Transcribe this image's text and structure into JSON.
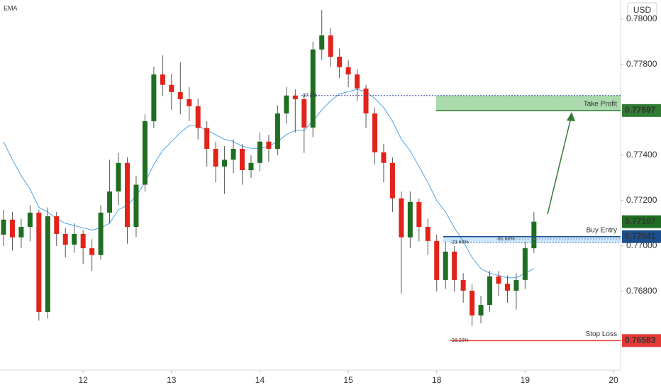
{
  "chart_data": {
    "type": "candlestick",
    "indicator": "EMA",
    "currency": "USD",
    "xlim": [
      -0.4,
      69.8
    ],
    "xticks": [
      {
        "value": 9,
        "label": "12"
      },
      {
        "value": 19,
        "label": "13"
      },
      {
        "value": 29,
        "label": "14"
      },
      {
        "value": 39,
        "label": "15"
      },
      {
        "value": 49,
        "label": "18"
      },
      {
        "value": 59,
        "label": "19"
      },
      {
        "value": 69,
        "label": "20"
      }
    ],
    "ylim": [
      0.76459,
      0.78084
    ],
    "yticks": [
      {
        "value": 0.78,
        "label": "0.78000"
      },
      {
        "value": 0.778,
        "label": "0.77800"
      },
      {
        "value": 0.774,
        "label": "0.77400"
      },
      {
        "value": 0.772,
        "label": "0.77200"
      },
      {
        "value": 0.77,
        "label": "0.77000"
      },
      {
        "value": 0.768,
        "label": "0.76800"
      }
    ],
    "up_color": "#1f6e22",
    "down_color": "#e2231a",
    "open": [
      0.7705,
      0.77116,
      0.77038,
      0.77084,
      0.77147,
      0.76709,
      0.77131,
      0.77053,
      0.77006,
      0.77053,
      0.7699,
      0.7696,
      0.77147,
      0.7724,
      0.77366,
      0.77084,
      0.7727,
      0.7755,
      0.77756,
      0.7771,
      0.77678,
      0.77647,
      0.77616,
      0.7752,
      0.77428,
      0.7735,
      0.7738,
      0.77428,
      0.77334,
      0.77366,
      0.7746,
      0.77428,
      0.77584,
      0.77663,
      0.77647,
      0.77522,
      0.77866,
      0.77928,
      0.77834,
      0.77788,
      0.77756,
      0.77694,
      0.77584,
      0.77413,
      0.77366,
      0.7721,
      0.77038,
      0.77194,
      0.77084,
      0.77022,
      0.7685,
      0.76975,
      0.7685,
      0.76803,
      0.76694,
      0.7674,
      0.76866,
      0.76834,
      0.76803,
      0.7685,
      0.7699
    ],
    "high": [
      0.7716,
      0.7715,
      0.7712,
      0.7718,
      0.7716,
      0.7717,
      0.7715,
      0.7708,
      0.771,
      0.7707,
      0.7703,
      0.7718,
      0.7738,
      0.7741,
      0.7739,
      0.7731,
      0.7758,
      0.7779,
      0.7784,
      0.7776,
      0.7781,
      0.777,
      0.7765,
      0.7755,
      0.7746,
      0.7744,
      0.7747,
      0.7745,
      0.774,
      0.775,
      0.7749,
      0.7762,
      0.777,
      0.7769,
      0.7767,
      0.779,
      0.7804,
      0.7796,
      0.7787,
      0.7782,
      0.7778,
      0.7771,
      0.7761,
      0.7745,
      0.7739,
      0.7724,
      0.7724,
      0.7721,
      0.7712,
      0.7705,
      0.7702,
      0.77,
      0.7688,
      0.7683,
      0.7678,
      0.7689,
      0.7689,
      0.7687,
      0.7688,
      0.7702,
      0.7715
    ],
    "low": [
      0.77,
      0.7698,
      0.7699,
      0.7702,
      0.76672,
      0.7668,
      0.77,
      0.7695,
      0.7697,
      0.7692,
      0.7689,
      0.7694,
      0.771,
      0.7718,
      0.7701,
      0.7704,
      0.7724,
      0.7752,
      0.7766,
      0.776,
      0.7758,
      0.7755,
      0.7747,
      0.7735,
      0.7728,
      0.7723,
      0.7732,
      0.7727,
      0.773,
      0.7733,
      0.7737,
      0.774,
      0.7754,
      0.775,
      0.7741,
      0.7748,
      0.7782,
      0.7779,
      0.7774,
      0.777,
      0.7764,
      0.7752,
      0.7736,
      0.7728,
      0.7715,
      0.7679,
      0.7699,
      0.7702,
      0.7696,
      0.768,
      0.7681,
      0.768,
      0.7675,
      0.76647,
      0.7666,
      0.7671,
      0.7678,
      0.7675,
      0.7672,
      0.7681,
      0.7697
    ],
    "close": [
      0.77116,
      0.77038,
      0.77084,
      0.77147,
      0.76709,
      0.77131,
      0.77053,
      0.77006,
      0.77053,
      0.7699,
      0.7696,
      0.77147,
      0.7724,
      0.77366,
      0.77084,
      0.7727,
      0.7755,
      0.77756,
      0.7771,
      0.77678,
      0.77647,
      0.77616,
      0.7752,
      0.77428,
      0.7735,
      0.7738,
      0.77428,
      0.77334,
      0.77366,
      0.7746,
      0.77428,
      0.77584,
      0.77663,
      0.77647,
      0.77522,
      0.77866,
      0.77928,
      0.77834,
      0.77788,
      0.77756,
      0.77694,
      0.77584,
      0.77413,
      0.77366,
      0.7721,
      0.77038,
      0.77194,
      0.77084,
      0.77022,
      0.7685,
      0.76975,
      0.7685,
      0.76803,
      0.76694,
      0.7674,
      0.76866,
      0.76834,
      0.76803,
      0.7685,
      0.7699,
      0.77107
    ],
    "ema": {
      "color": "#4da3e6",
      "values": [
        0.7746,
        0.7738,
        0.7731,
        0.7725,
        0.7717,
        0.7715,
        0.7712,
        0.771,
        0.7709,
        0.7708,
        0.7707,
        0.7708,
        0.771,
        0.7716,
        0.7718,
        0.7722,
        0.7728,
        0.7736,
        0.7742,
        0.7746,
        0.775,
        0.7753,
        0.7753,
        0.7751,
        0.7749,
        0.7747,
        0.7746,
        0.7744,
        0.7743,
        0.7743,
        0.7744,
        0.7746,
        0.7749,
        0.7751,
        0.7751,
        0.7755,
        0.776,
        0.7764,
        0.7767,
        0.7768,
        0.7769,
        0.7768,
        0.7765,
        0.7761,
        0.7755,
        0.7747,
        0.7742,
        0.7735,
        0.7728,
        0.772,
        0.7715,
        0.7708,
        0.7702,
        0.7695,
        0.769,
        0.7688,
        0.7687,
        0.7686,
        0.7686,
        0.7688,
        0.769
      ]
    },
    "levels": [
      {
        "name": "Take Profit",
        "value": 0.77597,
        "color": "#2e7d32"
      },
      {
        "name": "Buy Entry",
        "value": 0.77041,
        "color": "#1b4f8f"
      },
      {
        "name": "Stop Loss",
        "value": 0.76583,
        "color": "#e53935"
      }
    ],
    "fib": [
      {
        "label": "27.2%",
        "value": 0.77663,
        "color": "#3949ab"
      },
      {
        "label": "23.60%",
        "value": 0.77016,
        "color": "#2f6fd0"
      },
      {
        "label": "61.80%",
        "value": 0.77031,
        "color": "#7b8cc9"
      },
      {
        "label": "38.20%",
        "value": 0.76584,
        "color": "#a3b820"
      }
    ]
  }
}
